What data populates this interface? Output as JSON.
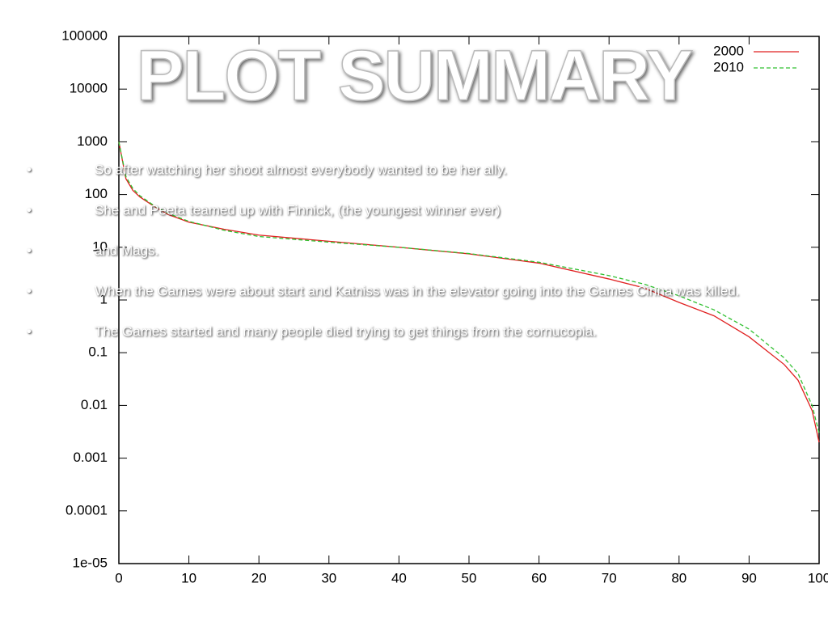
{
  "chart_data": {
    "type": "line",
    "title": "PLOT SUMMARY",
    "annotations": [
      "So after watching her shoot almost everybody wanted to be her ally.",
      "She and Peeta teamed up with Finnick, (the youngest winner ever)",
      "and Mags.",
      "When the Games were about start and Katniss was in the elevator going into the Games Cinna was killed.",
      "The Games started and many people died trying to get things from the cornucopia."
    ],
    "x": [
      0,
      1,
      2,
      3,
      5,
      7,
      10,
      15,
      20,
      30,
      40,
      50,
      60,
      70,
      75,
      80,
      85,
      90,
      95,
      97,
      99,
      100
    ],
    "series": [
      {
        "name": "2000",
        "color": "#e02020",
        "dash": false,
        "values": [
          1000,
          200,
          120,
          90,
          60,
          42,
          30,
          22,
          17,
          13,
          10,
          7.5,
          5,
          2.5,
          1.7,
          0.9,
          0.5,
          0.2,
          0.06,
          0.03,
          0.008,
          0.002
        ]
      },
      {
        "name": "2010",
        "color": "#30c030",
        "dash": true,
        "values": [
          1000,
          220,
          130,
          95,
          62,
          44,
          31,
          21,
          16,
          12.5,
          10,
          7.6,
          5.2,
          2.9,
          2,
          1.2,
          0.65,
          0.28,
          0.08,
          0.04,
          0.01,
          0.003
        ]
      }
    ],
    "xlim": [
      0,
      100
    ],
    "xticks": [
      0,
      10,
      20,
      30,
      40,
      50,
      60,
      70,
      80,
      90,
      100
    ],
    "ylim": [
      1e-05,
      100000
    ],
    "ylog": true,
    "yticks": [
      {
        "value": 1e-05,
        "label": "1e-05"
      },
      0.0001,
      0.001,
      0.01,
      0.1,
      1,
      10,
      100,
      1000,
      10000,
      100000
    ],
    "legend": "top-right",
    "grid": false
  }
}
